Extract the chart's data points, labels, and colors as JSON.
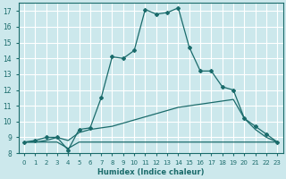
{
  "xlabel": "Humidex (Indice chaleur)",
  "background_color": "#cce8ec",
  "grid_color": "#ffffff",
  "line_color": "#1a6b6b",
  "xlim": [
    -0.5,
    23.5
  ],
  "ylim": [
    8,
    17.5
  ],
  "xticks": [
    0,
    1,
    2,
    3,
    4,
    5,
    6,
    7,
    8,
    9,
    10,
    11,
    12,
    13,
    14,
    15,
    16,
    17,
    18,
    19,
    20,
    21,
    22,
    23
  ],
  "yticks": [
    8,
    9,
    10,
    11,
    12,
    13,
    14,
    15,
    16,
    17
  ],
  "lines": [
    {
      "x": [
        0,
        1,
        2,
        3,
        4,
        5,
        6,
        7,
        8,
        9,
        10,
        11,
        12,
        13,
        14,
        15,
        16,
        17,
        18,
        19,
        20,
        21,
        22,
        23
      ],
      "y": [
        8.7,
        8.7,
        8.7,
        8.7,
        8.3,
        8.7,
        8.7,
        8.7,
        8.7,
        8.7,
        8.7,
        8.7,
        8.7,
        8.7,
        8.7,
        8.7,
        8.7,
        8.7,
        8.7,
        8.7,
        8.7,
        8.7,
        8.7,
        8.7
      ],
      "marker": false
    },
    {
      "x": [
        0,
        1,
        2,
        3,
        4,
        5,
        6,
        7,
        8,
        9,
        10,
        11,
        12,
        13,
        14,
        15,
        16,
        17,
        18,
        19,
        20,
        21,
        22,
        23
      ],
      "y": [
        8.7,
        8.7,
        8.8,
        9.0,
        8.8,
        9.3,
        9.5,
        9.6,
        9.7,
        9.9,
        10.1,
        10.3,
        10.5,
        10.7,
        10.9,
        11.0,
        11.1,
        11.2,
        11.3,
        11.4,
        10.2,
        9.5,
        9.0,
        8.7
      ],
      "marker": false
    },
    {
      "x": [
        0,
        1,
        2,
        3,
        4,
        5,
        6,
        7,
        8,
        9,
        10,
        11,
        12,
        13,
        14,
        15,
        16,
        17,
        18,
        19,
        20,
        21,
        22,
        23
      ],
      "y": [
        8.7,
        8.8,
        9.0,
        9.0,
        8.2,
        9.5,
        9.6,
        11.5,
        14.1,
        14.0,
        14.5,
        17.1,
        16.8,
        16.9,
        17.2,
        14.7,
        13.2,
        13.2,
        12.2,
        12.0,
        10.2,
        9.7,
        9.2,
        8.7
      ],
      "marker": true
    }
  ]
}
